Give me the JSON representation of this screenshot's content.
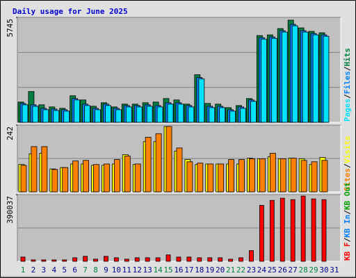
{
  "title": "Daily usage for June 2025",
  "legend_separator": "/",
  "categories": [
    "1",
    "2",
    "3",
    "4",
    "5",
    "6",
    "7",
    "8",
    "9",
    "10",
    "11",
    "12",
    "13",
    "14",
    "15",
    "16",
    "17",
    "18",
    "19",
    "20",
    "21",
    "22",
    "23",
    "24",
    "25",
    "26",
    "27",
    "28",
    "29",
    "30",
    "31"
  ],
  "category_colors": [
    "#008040",
    "#00008b",
    "#00008b",
    "#00008b",
    "#00008b",
    "#00008b",
    "#008040",
    "#008040",
    "#00008b",
    "#00008b",
    "#00008b",
    "#00008b",
    "#00008b",
    "#008040",
    "#008040",
    "#00008b",
    "#00008b",
    "#00008b",
    "#00008b",
    "#00008b",
    "#008040",
    "#008040",
    "#00008b",
    "#00008b",
    "#00008b",
    "#00008b",
    "#00008b",
    "#008040",
    "#008040",
    "#00008b",
    "#00008b"
  ],
  "chart_data": [
    {
      "type": "bar",
      "ylim": [
        0,
        5745
      ],
      "yticks": [
        5745
      ],
      "grid_lines": [
        1915,
        3830
      ],
      "series": [
        {
          "name": "Hits",
          "color": "#008040",
          "values": [
            1110,
            1685,
            958,
            843,
            766,
            1455,
            1225,
            880,
            1072,
            843,
            996,
            996,
            1072,
            1110,
            1302,
            1225,
            996,
            2604,
            1034,
            996,
            804,
            920,
            1302,
            4749,
            4788,
            5132,
            5592,
            5170,
            4979,
            4902,
            null
          ]
        },
        {
          "name": "Files",
          "color": "#0080ff",
          "values": [
            1034,
            958,
            766,
            728,
            690,
            1302,
            996,
            766,
            996,
            766,
            920,
            920,
            958,
            920,
            1072,
            1072,
            920,
            2451,
            880,
            880,
            690,
            843,
            1225,
            4634,
            4673,
            5017,
            5362,
            5017,
            4864,
            4788,
            null
          ]
        },
        {
          "name": "Pages",
          "color": "#00e0ff",
          "values": [
            958,
            880,
            690,
            650,
            613,
            1225,
            920,
            690,
            920,
            690,
            843,
            843,
            880,
            843,
            996,
            996,
            843,
            2375,
            804,
            804,
            613,
            766,
            1149,
            4558,
            4596,
            4941,
            5285,
            4941,
            4788,
            4711,
            null
          ]
        }
      ]
    },
    {
      "type": "bar",
      "ylim": [
        0,
        242
      ],
      "yticks": [
        242
      ],
      "grid_lines": [
        121
      ],
      "series": [
        {
          "name": "Visits",
          "color": "#ffff00",
          "values": [
            99,
            138,
            140,
            83,
            88,
            101,
            101,
            96,
            96,
            101,
            135,
            99,
            182,
            182,
            237,
            148,
            117,
            99,
            101,
            101,
            101,
            101,
            122,
            120,
            127,
            120,
            122,
            120,
            99,
            125,
            null
          ]
        },
        {
          "name": "Sites",
          "color": "#ff8000",
          "values": [
            96,
            164,
            164,
            81,
            88,
            112,
            114,
            99,
            101,
            117,
            130,
            101,
            198,
            211,
            237,
            159,
            109,
            104,
            101,
            101,
            117,
            117,
            120,
            120,
            140,
            120,
            122,
            114,
            109,
            114,
            null
          ]
        }
      ]
    },
    {
      "type": "bar",
      "ylim": [
        0,
        390037
      ],
      "yticks": [
        390037
      ],
      "grid_lines": [
        195018
      ],
      "series": [
        {
          "name": "KB F",
          "color": "#ff0000",
          "values": [
            25164,
            8388,
            8388,
            8388,
            8388,
            20970,
            29358,
            12582,
            29358,
            20970,
            12582,
            20970,
            20970,
            20970,
            37746,
            25164,
            25164,
            20970,
            20970,
            20970,
            12582,
            20970,
            62910,
            327132,
            356490,
            369072,
            360684,
            381654,
            364878,
            360684,
            null
          ]
        }
      ],
      "extra_legend": [
        {
          "name": "KB In",
          "color": "#0080ff"
        },
        {
          "name": "KB Out",
          "color": "#00a000"
        }
      ]
    }
  ]
}
